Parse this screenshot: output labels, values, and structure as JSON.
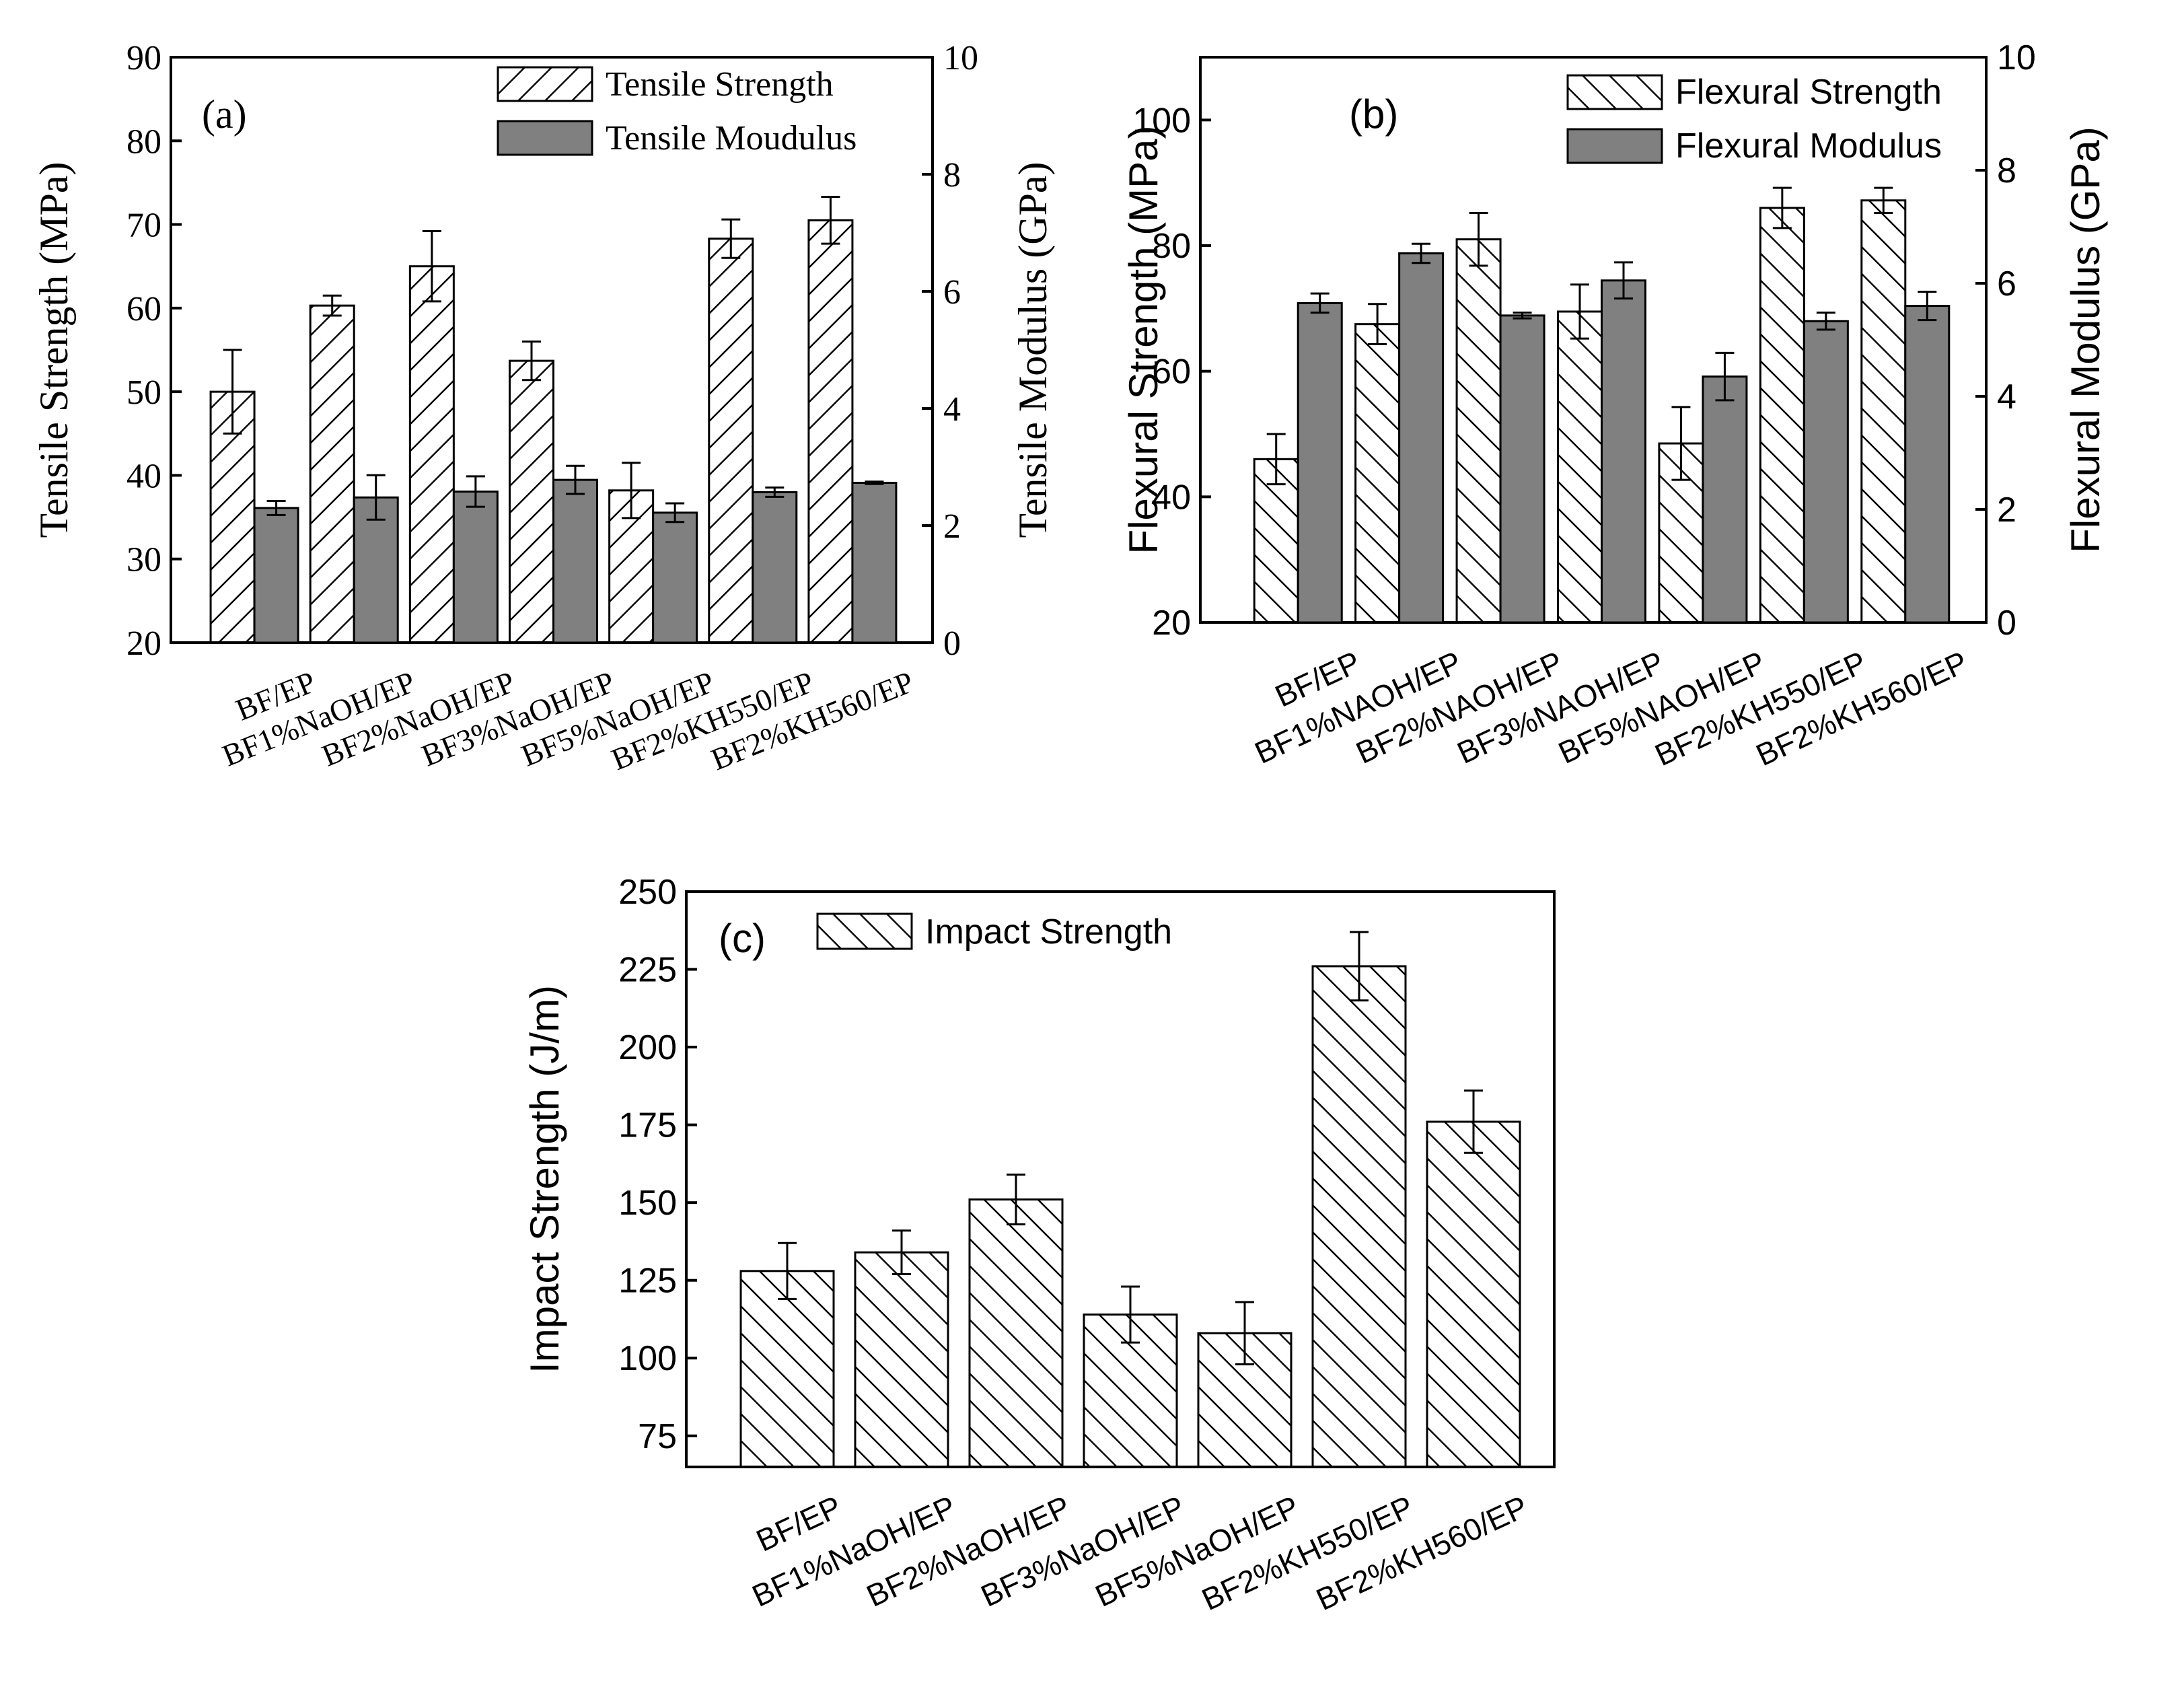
{
  "colors": {
    "modulus_fill": "#808080",
    "strength_fill": "#ffffff",
    "stroke": "#000000"
  },
  "chart_data": [
    {
      "panel": "(a)",
      "type": "bar",
      "categories": [
        "BF/EP",
        "BF1%NaOH/EP",
        "BF2%NaOH/EP",
        "BF3%NaOH/EP",
        "BF5%NaOH/EP",
        "BF2%KH550/EP",
        "BF2%KH560/EP"
      ],
      "series": [
        {
          "name": "Tensile Strength",
          "axis": "left",
          "pattern": "hatch-up",
          "values": [
            50.0,
            60.3,
            65.0,
            53.7,
            38.2,
            68.3,
            70.5
          ],
          "errors": [
            5.0,
            1.2,
            4.2,
            2.3,
            3.3,
            2.3,
            2.8
          ]
        },
        {
          "name": "Tensile Moudulus",
          "axis": "right",
          "pattern": "solid",
          "values": [
            2.3,
            2.48,
            2.58,
            2.78,
            2.22,
            2.57,
            2.73
          ],
          "errors": [
            0.12,
            0.38,
            0.26,
            0.24,
            0.16,
            0.08,
            0.02
          ]
        }
      ],
      "ylabel": "Tensile Strength (MPa)",
      "y2label": "Tensile Modulus (GPa)",
      "ylim": [
        20,
        90
      ],
      "yticks": [
        20,
        30,
        40,
        50,
        60,
        70,
        80,
        90
      ],
      "y2lim": [
        0,
        10
      ],
      "y2ticks": [
        0,
        2,
        4,
        6,
        8,
        10
      ],
      "legend": "top-right"
    },
    {
      "panel": "(b)",
      "type": "bar",
      "categories": [
        "BF/EP",
        "BF1%NAOH/EP",
        "BF2%NAOH/EP",
        "BF3%NAOH/EP",
        "BF5%NAOH/EP",
        "BF2%KH550/EP",
        "BF2%KH560/EP"
      ],
      "series": [
        {
          "name": "Flexural Strength",
          "axis": "left",
          "pattern": "hatch-down",
          "values": [
            46.0,
            67.5,
            81.0,
            69.5,
            48.5,
            86.0,
            87.2
          ],
          "errors": [
            4.0,
            3.2,
            4.2,
            4.3,
            5.8,
            3.2,
            2.0
          ]
        },
        {
          "name": "Flexural Modulus",
          "axis": "right",
          "pattern": "solid",
          "values": [
            5.65,
            6.53,
            5.43,
            6.05,
            4.35,
            5.33,
            5.6
          ],
          "errors": [
            0.17,
            0.17,
            0.05,
            0.32,
            0.42,
            0.15,
            0.25
          ]
        }
      ],
      "ylabel": "Flexural Strength (MPa)",
      "y2label": "Flexural Modulus (GPa)",
      "ylim": [
        20,
        110
      ],
      "yticks": [
        20,
        40,
        60,
        80,
        100
      ],
      "y2lim": [
        0,
        10
      ],
      "y2ticks": [
        0,
        2,
        4,
        6,
        8,
        10
      ],
      "legend": "top-right"
    },
    {
      "panel": "(c)",
      "type": "bar",
      "categories": [
        "BF/EP",
        "BF1%NaOH/EP",
        "BF2%NaOH/EP",
        "BF3%NaOH/EP",
        "BF5%NaOH/EP",
        "BF2%KH550/EP",
        "BF2%KH560/EP"
      ],
      "series": [
        {
          "name": "Impact Strength",
          "axis": "left",
          "pattern": "hatch-down",
          "values": [
            128,
            134,
            151,
            114,
            108,
            226,
            176
          ],
          "errors": [
            9,
            7,
            8,
            9,
            10,
            11,
            10
          ]
        }
      ],
      "ylabel": "Impact Strength (J/m)",
      "ylim": [
        65,
        250
      ],
      "yticks": [
        75,
        100,
        125,
        150,
        175,
        200,
        225,
        250
      ],
      "legend": "top-left"
    }
  ]
}
